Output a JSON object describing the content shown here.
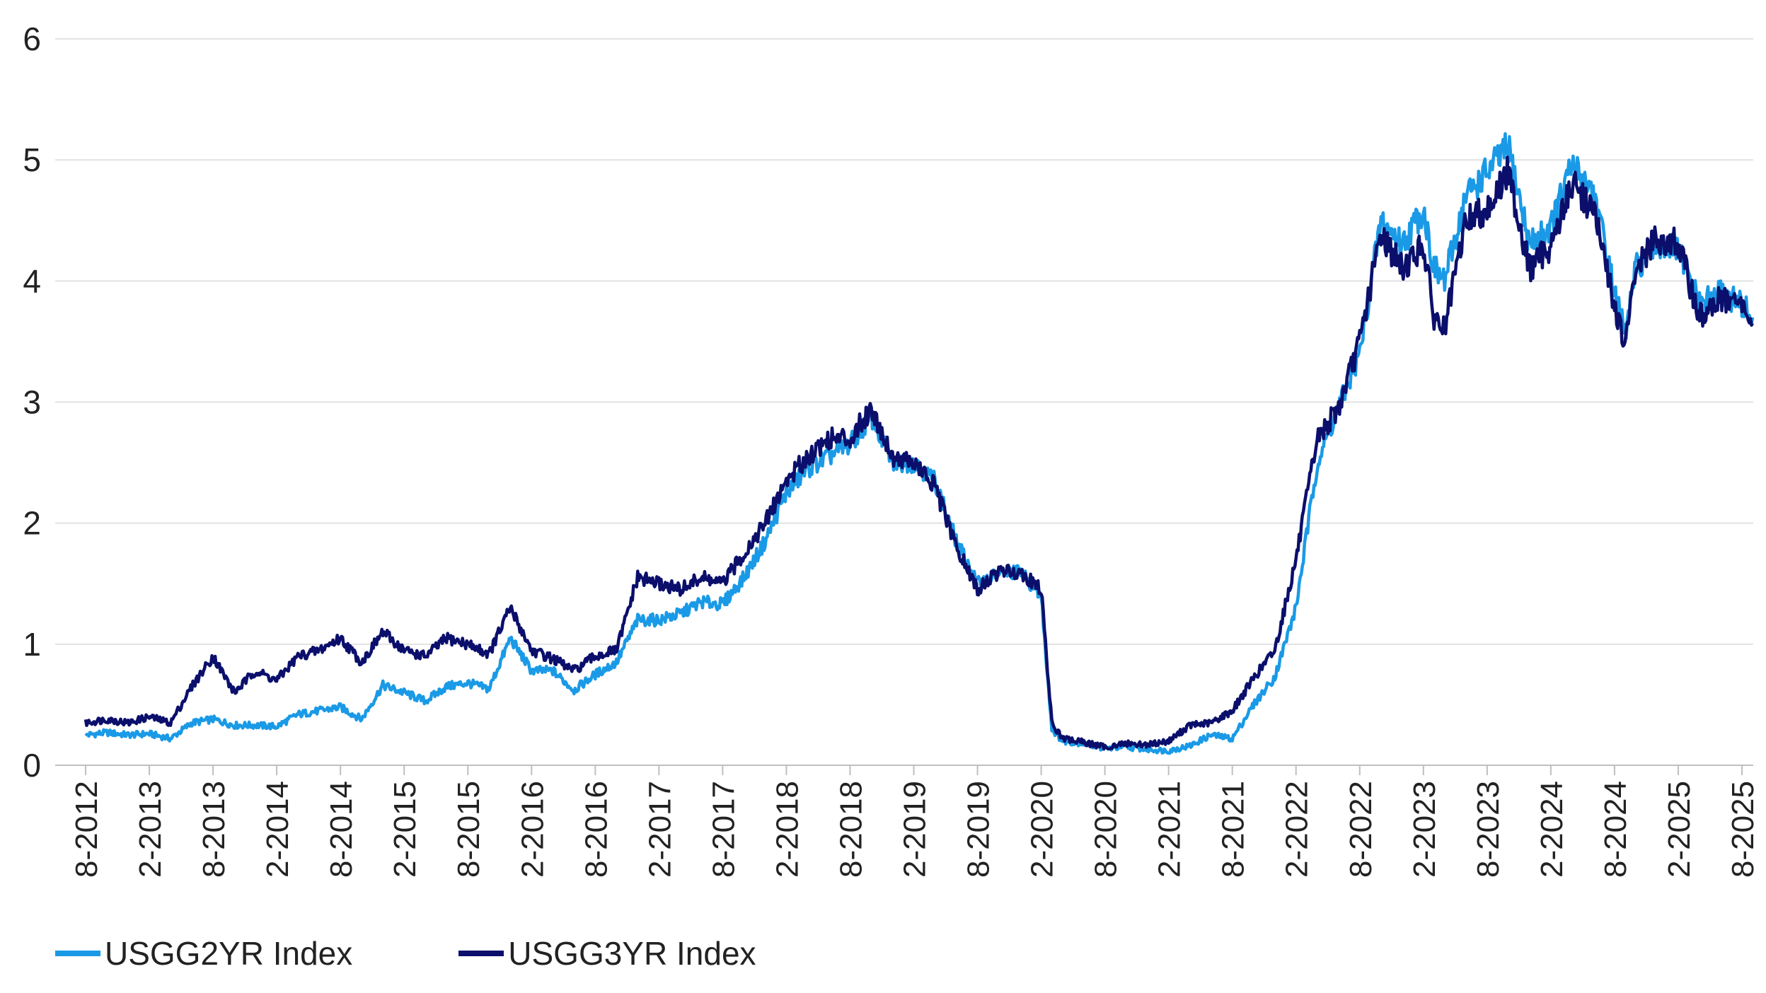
{
  "chart_data": {
    "type": "line",
    "title": "",
    "xlabel": "",
    "ylabel": "",
    "ylim": [
      0,
      6
    ],
    "y_ticks": [
      "0",
      "1",
      "2",
      "3",
      "4",
      "5",
      "6"
    ],
    "x_range": [
      "2012-08",
      "2025-09"
    ],
    "x_ticks": [
      "8-2012",
      "2-2013",
      "8-2013",
      "2-2014",
      "8-2014",
      "2-2015",
      "8-2015",
      "2-2016",
      "8-2016",
      "2-2017",
      "8-2017",
      "2-2018",
      "8-2018",
      "2-2019",
      "8-2019",
      "2-2020",
      "8-2020",
      "2-2021",
      "8-2021",
      "2-2022",
      "8-2022",
      "2-2023",
      "8-2023",
      "2-2024",
      "8-2024",
      "2-2025",
      "8-2025"
    ],
    "grid": "horizontal",
    "legend_position": "bottom-left",
    "series": [
      {
        "name": "USGG2YR Index",
        "color": "#1a9ae6",
        "x": [
          "2012-08",
          "2012-10",
          "2012-12",
          "2013-02",
          "2013-04",
          "2013-06",
          "2013-08",
          "2013-10",
          "2013-12",
          "2014-02",
          "2014-04",
          "2014-06",
          "2014-08",
          "2014-10",
          "2014-12",
          "2015-02",
          "2015-04",
          "2015-06",
          "2015-08",
          "2015-10",
          "2015-12",
          "2016-02",
          "2016-04",
          "2016-06",
          "2016-08",
          "2016-10",
          "2016-12",
          "2017-02",
          "2017-04",
          "2017-06",
          "2017-08",
          "2017-10",
          "2017-12",
          "2018-02",
          "2018-04",
          "2018-06",
          "2018-08",
          "2018-10",
          "2018-12",
          "2019-02",
          "2019-04",
          "2019-06",
          "2019-08",
          "2019-10",
          "2019-12",
          "2020-02",
          "2020-03",
          "2020-04",
          "2020-06",
          "2020-08",
          "2020-10",
          "2020-12",
          "2021-02",
          "2021-04",
          "2021-06",
          "2021-08",
          "2021-10",
          "2021-12",
          "2022-02",
          "2022-04",
          "2022-06",
          "2022-08",
          "2022-10",
          "2022-12",
          "2023-02",
          "2023-03",
          "2023-04",
          "2023-06",
          "2023-08",
          "2023-10",
          "2023-12",
          "2024-02",
          "2024-04",
          "2024-06",
          "2024-08",
          "2024-09",
          "2024-10",
          "2024-12",
          "2025-02",
          "2025-04",
          "2025-06",
          "2025-08",
          "2025-09"
        ],
        "values": [
          0.25,
          0.27,
          0.25,
          0.26,
          0.22,
          0.35,
          0.38,
          0.33,
          0.33,
          0.32,
          0.42,
          0.45,
          0.48,
          0.38,
          0.66,
          0.6,
          0.53,
          0.65,
          0.68,
          0.63,
          1.05,
          0.78,
          0.78,
          0.62,
          0.75,
          0.85,
          1.2,
          1.2,
          1.25,
          1.35,
          1.33,
          1.55,
          1.85,
          2.25,
          2.45,
          2.55,
          2.65,
          2.88,
          2.5,
          2.5,
          2.35,
          1.85,
          1.5,
          1.58,
          1.6,
          1.4,
          0.3,
          0.2,
          0.18,
          0.14,
          0.15,
          0.13,
          0.12,
          0.16,
          0.25,
          0.22,
          0.5,
          0.73,
          1.3,
          2.5,
          2.95,
          3.4,
          4.5,
          4.3,
          4.6,
          4.1,
          4.0,
          4.7,
          4.9,
          5.1,
          4.3,
          4.45,
          4.95,
          4.75,
          3.9,
          3.55,
          4.1,
          4.3,
          4.25,
          3.8,
          3.9,
          3.8,
          3.7
        ]
      },
      {
        "name": "USGG3YR Index",
        "color": "#0b0f6b",
        "x": [
          "2012-08",
          "2012-10",
          "2012-12",
          "2013-02",
          "2013-04",
          "2013-06",
          "2013-08",
          "2013-10",
          "2013-12",
          "2014-02",
          "2014-04",
          "2014-06",
          "2014-08",
          "2014-10",
          "2014-12",
          "2015-02",
          "2015-04",
          "2015-06",
          "2015-08",
          "2015-10",
          "2015-12",
          "2016-02",
          "2016-04",
          "2016-06",
          "2016-08",
          "2016-10",
          "2016-12",
          "2017-02",
          "2017-04",
          "2017-06",
          "2017-08",
          "2017-10",
          "2017-12",
          "2018-02",
          "2018-04",
          "2018-06",
          "2018-08",
          "2018-10",
          "2018-12",
          "2019-02",
          "2019-04",
          "2019-06",
          "2019-08",
          "2019-10",
          "2019-12",
          "2020-02",
          "2020-03",
          "2020-04",
          "2020-06",
          "2020-08",
          "2020-10",
          "2020-12",
          "2021-02",
          "2021-04",
          "2021-06",
          "2021-08",
          "2021-10",
          "2021-12",
          "2022-02",
          "2022-04",
          "2022-06",
          "2022-08",
          "2022-10",
          "2022-12",
          "2023-02",
          "2023-03",
          "2023-04",
          "2023-06",
          "2023-08",
          "2023-10",
          "2023-12",
          "2024-02",
          "2024-04",
          "2024-06",
          "2024-08",
          "2024-09",
          "2024-10",
          "2024-12",
          "2025-02",
          "2025-04",
          "2025-06",
          "2025-08",
          "2025-09"
        ],
        "values": [
          0.35,
          0.38,
          0.35,
          0.4,
          0.35,
          0.65,
          0.9,
          0.6,
          0.78,
          0.7,
          0.9,
          0.95,
          1.05,
          0.85,
          1.1,
          0.95,
          0.9,
          1.05,
          1.0,
          0.92,
          1.3,
          0.95,
          0.88,
          0.78,
          0.9,
          0.95,
          1.55,
          1.5,
          1.45,
          1.55,
          1.5,
          1.75,
          2.0,
          2.35,
          2.55,
          2.7,
          2.7,
          2.95,
          2.55,
          2.5,
          2.3,
          1.8,
          1.45,
          1.6,
          1.6,
          1.45,
          0.35,
          0.22,
          0.19,
          0.15,
          0.18,
          0.17,
          0.2,
          0.33,
          0.35,
          0.45,
          0.72,
          0.95,
          1.7,
          2.7,
          2.95,
          3.5,
          4.4,
          4.1,
          4.3,
          3.7,
          3.6,
          4.5,
          4.6,
          4.9,
          4.1,
          4.3,
          4.8,
          4.6,
          3.8,
          3.45,
          4.1,
          4.35,
          4.3,
          3.7,
          3.85,
          3.8,
          3.65
        ]
      }
    ]
  }
}
